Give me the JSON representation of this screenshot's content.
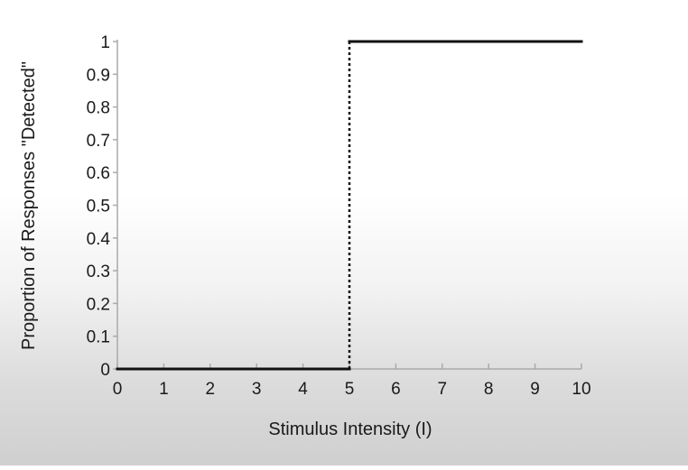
{
  "chart_data": {
    "type": "line",
    "title": "",
    "xlabel": "Stimulus Intensity (I)",
    "ylabel": "Proportion of Responses \"Detected\"",
    "xlim": [
      0,
      10
    ],
    "ylim": [
      0,
      1
    ],
    "x_ticks": [
      "0",
      "1",
      "2",
      "3",
      "4",
      "5",
      "6",
      "7",
      "8",
      "9",
      "10"
    ],
    "y_ticks": [
      "0",
      "0.1",
      "0.2",
      "0.3",
      "0.4",
      "0.5",
      "0.6",
      "0.7",
      "0.8",
      "0.9",
      "1"
    ],
    "grid": false,
    "legend": "none",
    "series": [
      {
        "style": "solid",
        "x": [
          0,
          5,
          5,
          10
        ],
        "y": [
          0,
          0,
          1,
          1
        ]
      }
    ],
    "threshold_line": {
      "x": 5,
      "y_from": 0,
      "y_to": 1,
      "style": "dotted"
    },
    "colors": {
      "line": "#111111",
      "axis": "#aaaaaa",
      "text": "#1a1a1a"
    }
  }
}
